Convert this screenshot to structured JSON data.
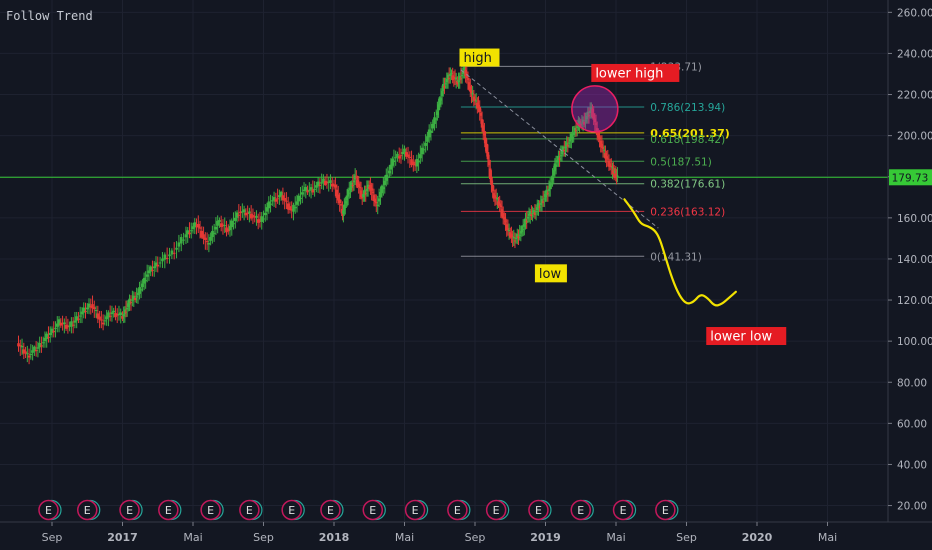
{
  "title": "Follow Trend",
  "chart_data": {
    "type": "line",
    "y_range": [
      12,
      266
    ],
    "y_ticks": [
      {
        "value": 260,
        "label": "260.00"
      },
      {
        "value": 240,
        "label": "240.00"
      },
      {
        "value": 220,
        "label": "220.00"
      },
      {
        "value": 200,
        "label": "200.00"
      },
      {
        "value": 180,
        "label": "180.00"
      },
      {
        "value": 160,
        "label": "160.00"
      },
      {
        "value": 140,
        "label": "140.00"
      },
      {
        "value": 120,
        "label": "120.00"
      },
      {
        "value": 100,
        "label": "100.00"
      },
      {
        "value": 80,
        "label": "80.00"
      },
      {
        "value": 60,
        "label": "60.00"
      },
      {
        "value": 40,
        "label": "40.00"
      },
      {
        "value": 20,
        "label": "20.00"
      }
    ],
    "x_ticks": [
      {
        "t": 0.5,
        "label": "Sep"
      },
      {
        "t": 1.5,
        "label": "2017",
        "bold": true
      },
      {
        "t": 2.5,
        "label": "Mai"
      },
      {
        "t": 3.5,
        "label": "Sep"
      },
      {
        "t": 4.5,
        "label": "2018",
        "bold": true
      },
      {
        "t": 5.5,
        "label": "Mai"
      },
      {
        "t": 6.5,
        "label": "Sep"
      },
      {
        "t": 7.5,
        "label": "2019",
        "bold": true
      },
      {
        "t": 8.5,
        "label": "Mai"
      },
      {
        "t": 9.5,
        "label": "Sep"
      },
      {
        "t": 10.5,
        "label": "2020",
        "bold": true
      },
      {
        "t": 11.5,
        "label": "Mai"
      }
    ],
    "price_path": [
      [
        0.0,
        99
      ],
      [
        0.15,
        93
      ],
      [
        0.3,
        97
      ],
      [
        0.45,
        103
      ],
      [
        0.6,
        109
      ],
      [
        0.75,
        107
      ],
      [
        0.9,
        113
      ],
      [
        1.05,
        118
      ],
      [
        1.2,
        109
      ],
      [
        1.35,
        114
      ],
      [
        1.5,
        112
      ],
      [
        1.6,
        119
      ],
      [
        1.72,
        123
      ],
      [
        1.85,
        133
      ],
      [
        2.0,
        138
      ],
      [
        2.2,
        143
      ],
      [
        2.4,
        152
      ],
      [
        2.55,
        157
      ],
      [
        2.7,
        147
      ],
      [
        2.85,
        158
      ],
      [
        3.0,
        154
      ],
      [
        3.15,
        163
      ],
      [
        3.3,
        162
      ],
      [
        3.45,
        158
      ],
      [
        3.6,
        168
      ],
      [
        3.75,
        171
      ],
      [
        3.9,
        163
      ],
      [
        4.05,
        173
      ],
      [
        4.2,
        174
      ],
      [
        4.35,
        178
      ],
      [
        4.5,
        176
      ],
      [
        4.62,
        162
      ],
      [
        4.7,
        172
      ],
      [
        4.8,
        180
      ],
      [
        4.9,
        170
      ],
      [
        5.0,
        176
      ],
      [
        5.1,
        166
      ],
      [
        5.22,
        178
      ],
      [
        5.35,
        189
      ],
      [
        5.5,
        192
      ],
      [
        5.65,
        185
      ],
      [
        5.8,
        197
      ],
      [
        5.95,
        210
      ],
      [
        6.05,
        224
      ],
      [
        6.15,
        230
      ],
      [
        6.25,
        226
      ],
      [
        6.35,
        232
      ],
      [
        6.45,
        220
      ],
      [
        6.55,
        214
      ],
      [
        6.65,
        196
      ],
      [
        6.75,
        172
      ],
      [
        6.85,
        166
      ],
      [
        6.95,
        155
      ],
      [
        7.05,
        149
      ],
      [
        7.15,
        153
      ],
      [
        7.25,
        161
      ],
      [
        7.35,
        163
      ],
      [
        7.45,
        168
      ],
      [
        7.55,
        174
      ],
      [
        7.65,
        187
      ],
      [
        7.75,
        193
      ],
      [
        7.85,
        198
      ],
      [
        7.95,
        205
      ],
      [
        8.05,
        207
      ],
      [
        8.15,
        213
      ],
      [
        8.25,
        199
      ],
      [
        8.35,
        190
      ],
      [
        8.45,
        183
      ],
      [
        8.52,
        180
      ]
    ],
    "current_price": {
      "value": 179.73,
      "label": "179.73"
    },
    "fibonacci": {
      "levels": [
        {
          "value": 233.71,
          "label": "1(233.71)",
          "color": "#9598a1"
        },
        {
          "value": 213.94,
          "label": "0.786(213.94)",
          "color": "#26a69a"
        },
        {
          "value": 201.37,
          "label": "0.65(201.37)",
          "color": "#f2e200",
          "strong": true
        },
        {
          "value": 198.42,
          "label": "0.618(198.42)",
          "color": "#4caf50"
        },
        {
          "value": 187.51,
          "label": "0.5(187.51)",
          "color": "#4caf50"
        },
        {
          "value": 176.61,
          "label": "0.382(176.61)",
          "color": "#81c784"
        },
        {
          "value": 163.12,
          "label": "0.236(163.12)",
          "color": "#f23645"
        },
        {
          "value": 141.31,
          "label": "0(141.31)",
          "color": "#9598a1"
        }
      ],
      "t_start": 6.3,
      "t_end": 8.9
    },
    "projection": [
      [
        8.62,
        169
      ],
      [
        8.75,
        163
      ],
      [
        8.85,
        157
      ],
      [
        8.95,
        156
      ],
      [
        9.05,
        154
      ],
      [
        9.12,
        150
      ],
      [
        9.2,
        141
      ],
      [
        9.3,
        130
      ],
      [
        9.4,
        122
      ],
      [
        9.5,
        118
      ],
      [
        9.6,
        119
      ],
      [
        9.7,
        123
      ],
      [
        9.8,
        121
      ],
      [
        9.9,
        117
      ],
      [
        10.0,
        118
      ],
      [
        10.1,
        121
      ],
      [
        10.2,
        124
      ]
    ],
    "trendline": [
      [
        6.3,
        232
      ],
      [
        9.1,
        155
      ]
    ],
    "annotations": [
      {
        "text": "high",
        "t": 6.28,
        "v": 238.0,
        "bg": "#f2e200",
        "fg": "#131722"
      },
      {
        "text": "lower high",
        "t": 8.15,
        "v": 230.5,
        "bg": "#e51c23",
        "fg": "#ffffff"
      },
      {
        "text": "low",
        "t": 7.35,
        "v": 133.0,
        "bg": "#f2e200",
        "fg": "#131722"
      },
      {
        "text": "lower low",
        "t": 9.78,
        "v": 102.5,
        "bg": "#e51c23",
        "fg": "#ffffff"
      }
    ],
    "circle": {
      "t": 8.2,
      "v": 213
    },
    "earnings_label": "E",
    "earnings": [
      0.45,
      1.0,
      1.6,
      2.15,
      2.75,
      3.3,
      3.9,
      4.45,
      5.05,
      5.65,
      6.25,
      6.8,
      7.4,
      8.0,
      8.6,
      9.2
    ]
  }
}
